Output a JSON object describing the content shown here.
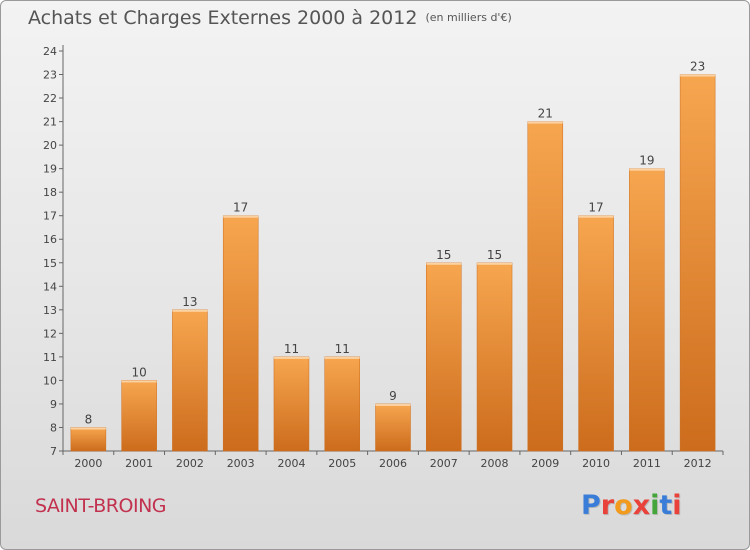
{
  "header": {
    "title": "Achats et Charges Externes 2000 à 2012",
    "unit": "(en milliers d'€)"
  },
  "footer": {
    "commune": "SAINT-BROING",
    "logo_text": "Proxiti",
    "logo_colors": [
      "#3a7dd8",
      "#e8423a",
      "#f29a1c",
      "#e8423a",
      "#44a63a",
      "#3a7dd8",
      "#e8423a"
    ]
  },
  "colors": {
    "bar_light": "#f7a650",
    "bar_dark": "#cc6c1c",
    "axis": "#666666",
    "grid": "#bdbdbd",
    "label": "#444444"
  },
  "chart_data": {
    "type": "bar",
    "title": "Achats et Charges Externes 2000 à 2012",
    "xlabel": "",
    "ylabel": "",
    "categories": [
      "2000",
      "2001",
      "2002",
      "2003",
      "2004",
      "2005",
      "2006",
      "2007",
      "2008",
      "2009",
      "2010",
      "2011",
      "2012"
    ],
    "values": [
      8,
      10,
      13,
      17,
      11,
      11,
      9,
      15,
      15,
      21,
      17,
      19,
      23
    ],
    "ylim": [
      7,
      24
    ],
    "yticks": [
      7,
      8,
      9,
      10,
      11,
      12,
      13,
      14,
      15,
      16,
      17,
      18,
      19,
      20,
      21,
      22,
      23,
      24
    ],
    "data_labels": true,
    "grid": false
  }
}
